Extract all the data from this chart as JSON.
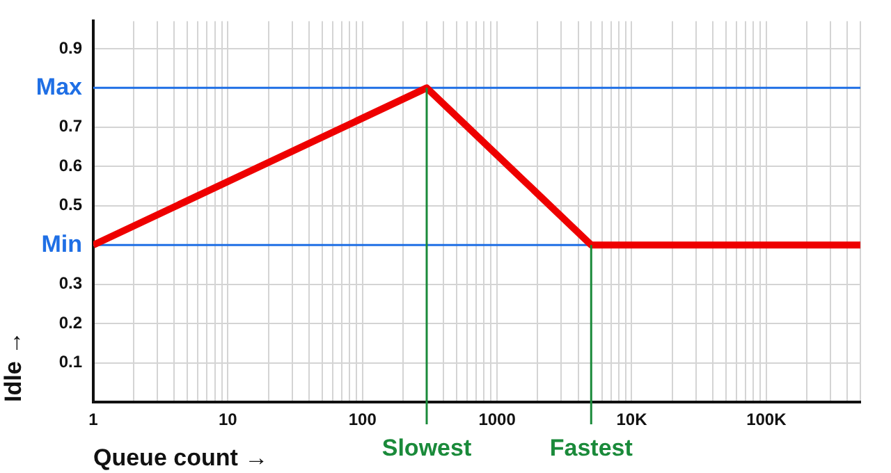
{
  "chart_data": {
    "type": "line",
    "xlabel": "Queue count →",
    "ylabel": "Idle →",
    "log": "x",
    "grid": true,
    "marker": "none",
    "line_style": "solid",
    "legend": false,
    "xlim": [
      1,
      500000
    ],
    "ylim": [
      0,
      0.97
    ],
    "xticks": [
      1,
      {
        "value": 2,
        "label": null
      },
      {
        "value": 3,
        "label": null
      },
      {
        "value": 4,
        "label": null
      },
      {
        "value": 5,
        "label": null
      },
      {
        "value": 6,
        "label": null
      },
      {
        "value": 7,
        "label": null
      },
      {
        "value": 8,
        "label": null
      },
      {
        "value": 9,
        "label": null
      },
      10,
      {
        "value": 20,
        "label": null
      },
      {
        "value": 30,
        "label": null
      },
      {
        "value": 40,
        "label": null
      },
      {
        "value": 50,
        "label": null
      },
      {
        "value": 60,
        "label": null
      },
      {
        "value": 70,
        "label": null
      },
      {
        "value": 80,
        "label": null
      },
      {
        "value": 90,
        "label": null
      },
      100,
      {
        "value": 200,
        "label": null
      },
      {
        "value": 300,
        "label": null
      },
      {
        "value": 400,
        "label": null
      },
      {
        "value": 500,
        "label": null
      },
      {
        "value": 600,
        "label": null
      },
      {
        "value": 700,
        "label": null
      },
      {
        "value": 800,
        "label": null
      },
      {
        "value": 900,
        "label": null
      },
      1000,
      {
        "value": 2000,
        "label": null
      },
      {
        "value": 3000,
        "label": null
      },
      {
        "value": 4000,
        "label": null
      },
      {
        "value": 5000,
        "label": null
      },
      {
        "value": 6000,
        "label": null
      },
      {
        "value": 7000,
        "label": null
      },
      {
        "value": 8000,
        "label": null
      },
      {
        "value": 9000,
        "label": null
      },
      {
        "value": 10000,
        "label": "10K"
      },
      {
        "value": 20000,
        "label": null
      },
      {
        "value": 30000,
        "label": null
      },
      {
        "value": 40000,
        "label": null
      },
      {
        "value": 50000,
        "label": null
      },
      {
        "value": 60000,
        "label": null
      },
      {
        "value": 70000,
        "label": null
      },
      {
        "value": 80000,
        "label": null
      },
      {
        "value": 90000,
        "label": null
      },
      {
        "value": 100000,
        "label": "100K"
      },
      {
        "value": 200000,
        "label": null
      },
      {
        "value": 300000,
        "label": null
      },
      {
        "value": 400000,
        "label": null
      },
      {
        "value": 500000,
        "label": null
      }
    ],
    "yticks": [
      0.1,
      0.2,
      0.3,
      0.5,
      0.6,
      0.7,
      0.9
    ],
    "series": [
      {
        "color": "#ee0000",
        "x": [
          1,
          300,
          5000,
          500000
        ],
        "values": [
          0.4,
          0.8,
          0.4,
          0.4
        ]
      }
    ],
    "ref_lines": [
      {
        "axis": "y",
        "value": 0.8,
        "label": "Max",
        "color": "#1f6fe5"
      },
      {
        "axis": "y",
        "value": 0.4,
        "label": "Min",
        "color": "#1f6fe5"
      },
      {
        "axis": "x",
        "value": 300,
        "label": "Slowest",
        "color": "#1a8a3a"
      },
      {
        "axis": "x",
        "value": 5000,
        "label": "Fastest",
        "color": "#1a8a3a"
      }
    ]
  }
}
